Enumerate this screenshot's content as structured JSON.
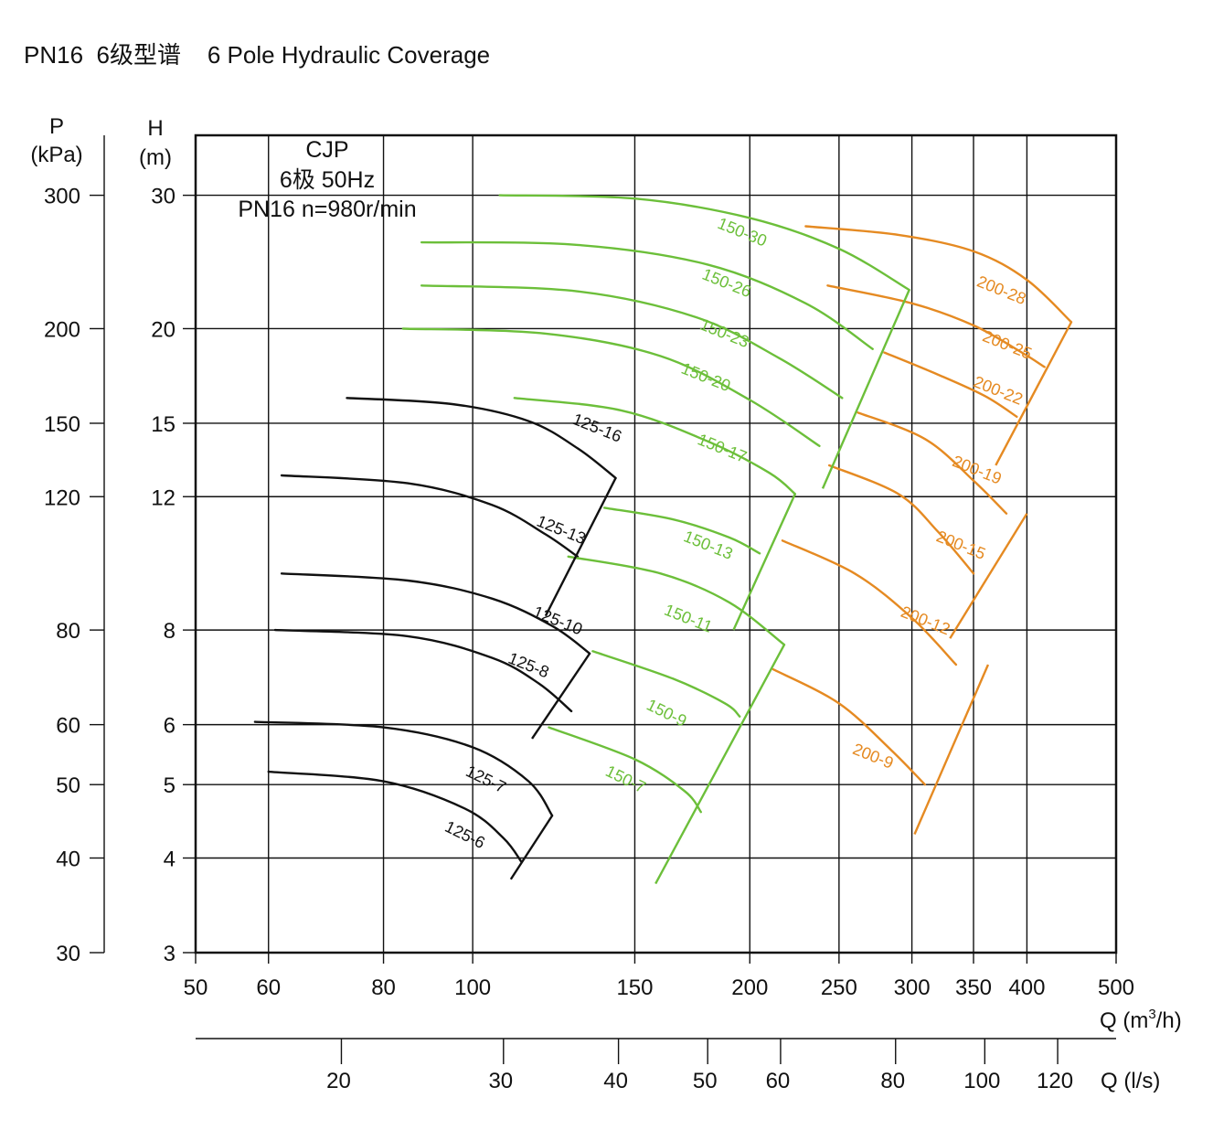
{
  "title": "PN16  6级型谱    6 Pole Hydraulic Coverage",
  "chart_data": {
    "type": "line",
    "title": "PN16  6级型谱    6 Pole Hydraulic Coverage",
    "info": [
      "CJP",
      "6极  50Hz",
      "PN16  n=980r/min"
    ],
    "x_scale": "log",
    "y_scale": "log",
    "xlim": [
      50,
      500
    ],
    "ylim": [
      3,
      36
    ],
    "x_ticks": [
      50,
      60,
      80,
      100,
      150,
      200,
      250,
      300,
      350,
      400,
      500
    ],
    "x_gridlines": [
      60,
      80,
      100,
      150,
      200,
      250,
      300,
      350,
      400
    ],
    "y_ticks": [
      3,
      4,
      5,
      6,
      8,
      12,
      15,
      20,
      30
    ],
    "y_tick_labels": [
      "3",
      "4",
      "5",
      "6",
      "8",
      "12",
      "15",
      "20",
      "30"
    ],
    "p_axis": {
      "label_line1": "P",
      "label_line2": "(kPa)",
      "ticks": [
        30,
        40,
        50,
        60,
        80,
        120,
        150,
        200,
        300
      ],
      "tick_labels": [
        "30",
        "40",
        "50",
        "60",
        "80",
        "120",
        "150",
        "200",
        "300"
      ]
    },
    "h_axis": {
      "label_line1": "H",
      "label_line2": "(m)"
    },
    "q_m3h_label": "Q (m",
    "q_m3h_sup": "3",
    "q_m3h_end": "/h)",
    "q_ls_axis": {
      "label": "Q (l/s)",
      "ticks": [
        20,
        30,
        40,
        50,
        60,
        80,
        100,
        120
      ],
      "tick_labels": [
        "20",
        "30",
        "40",
        "50",
        "60",
        "80",
        "100",
        "120"
      ]
    },
    "colors": {
      "grid": "#111111",
      "series_125": "#111111",
      "series_150": "#6cbf3a",
      "series_200": "#e58a22"
    },
    "series": [
      {
        "name": "125-16",
        "group": "125",
        "points": [
          [
            73,
            16.2
          ],
          [
            95,
            15.9
          ],
          [
            115,
            15.1
          ],
          [
            130,
            13.9
          ],
          [
            143,
            12.7
          ]
        ]
      },
      {
        "name": "125-13",
        "group": "125",
        "points": [
          [
            62,
            12.8
          ],
          [
            85,
            12.5
          ],
          [
            105,
            11.7
          ],
          [
            120,
            10.7
          ],
          [
            130,
            10.0
          ]
        ]
      },
      {
        "name": "125-10",
        "group": "125",
        "points": [
          [
            62,
            9.5
          ],
          [
            85,
            9.3
          ],
          [
            105,
            8.8
          ],
          [
            122,
            8.1
          ],
          [
            134,
            7.45
          ]
        ]
      },
      {
        "name": "125-8",
        "group": "125",
        "points": [
          [
            61,
            8.0
          ],
          [
            85,
            7.85
          ],
          [
            105,
            7.35
          ],
          [
            118,
            6.8
          ],
          [
            128,
            6.25
          ]
        ]
      },
      {
        "name": "125-7",
        "group": "125",
        "points": [
          [
            58,
            6.05
          ],
          [
            80,
            5.95
          ],
          [
            100,
            5.6
          ],
          [
            115,
            5.05
          ],
          [
            122,
            4.55
          ]
        ]
      },
      {
        "name": "125-6",
        "group": "125",
        "points": [
          [
            60,
            5.2
          ],
          [
            80,
            5.05
          ],
          [
            98,
            4.65
          ],
          [
            108,
            4.25
          ],
          [
            113,
            3.95
          ]
        ]
      },
      {
        "name": "150-30",
        "group": "150",
        "points": [
          [
            107,
            30
          ],
          [
            150,
            29.7
          ],
          [
            200,
            28.0
          ],
          [
            250,
            25.5
          ],
          [
            298,
            22.5
          ]
        ]
      },
      {
        "name": "150-26",
        "group": "150",
        "points": [
          [
            88,
            26.0
          ],
          [
            130,
            25.8
          ],
          [
            180,
            24.3
          ],
          [
            230,
            21.6
          ],
          [
            272,
            18.8
          ]
        ]
      },
      {
        "name": "150-23",
        "group": "150",
        "points": [
          [
            88,
            22.8
          ],
          [
            130,
            22.4
          ],
          [
            175,
            20.7
          ],
          [
            215,
            18.3
          ],
          [
            252,
            16.2
          ]
        ]
      },
      {
        "name": "150-20",
        "group": "150",
        "points": [
          [
            84,
            20.0
          ],
          [
            120,
            19.7
          ],
          [
            160,
            18.4
          ],
          [
            200,
            16.1
          ],
          [
            238,
            14.0
          ]
        ]
      },
      {
        "name": "150-17",
        "group": "150",
        "points": [
          [
            111,
            16.2
          ],
          [
            145,
            15.6
          ],
          [
            180,
            14.2
          ],
          [
            210,
            12.9
          ],
          [
            224,
            12.1
          ]
        ]
      },
      {
        "name": "150-13",
        "group": "150",
        "points": [
          [
            139,
            11.6
          ],
          [
            165,
            11.2
          ],
          [
            190,
            10.6
          ],
          [
            205,
            10.1
          ]
        ]
      },
      {
        "name": "150-11",
        "group": "150",
        "points": [
          [
            127,
            10.0
          ],
          [
            160,
            9.5
          ],
          [
            190,
            8.7
          ],
          [
            218,
            7.65
          ]
        ]
      },
      {
        "name": "150-9",
        "group": "150",
        "points": [
          [
            135,
            7.5
          ],
          [
            165,
            6.9
          ],
          [
            188,
            6.4
          ],
          [
            195,
            6.15
          ]
        ]
      },
      {
        "name": "150-7",
        "group": "150",
        "points": [
          [
            121,
            5.95
          ],
          [
            150,
            5.4
          ],
          [
            170,
            4.9
          ],
          [
            177,
            4.6
          ]
        ]
      },
      {
        "name": "200-28",
        "group": "200",
        "points": [
          [
            230,
            27.3
          ],
          [
            290,
            26.6
          ],
          [
            350,
            25.3
          ],
          [
            400,
            23.2
          ],
          [
            447,
            20.4
          ]
        ]
      },
      {
        "name": "200-25",
        "group": "200",
        "points": [
          [
            243,
            22.8
          ],
          [
            300,
            21.6
          ],
          [
            350,
            20.2
          ],
          [
            395,
            18.6
          ],
          [
            418,
            17.8
          ]
        ]
      },
      {
        "name": "200-22",
        "group": "200",
        "points": [
          [
            280,
            18.6
          ],
          [
            320,
            17.4
          ],
          [
            360,
            16.3
          ],
          [
            390,
            15.3
          ]
        ]
      },
      {
        "name": "200-19",
        "group": "200",
        "points": [
          [
            262,
            15.5
          ],
          [
            310,
            14.3
          ],
          [
            350,
            12.6
          ],
          [
            380,
            11.4
          ]
        ]
      },
      {
        "name": "200-15",
        "group": "200",
        "points": [
          [
            244,
            13.2
          ],
          [
            290,
            12.1
          ],
          [
            320,
            10.8
          ],
          [
            350,
            9.5
          ]
        ]
      },
      {
        "name": "200-12",
        "group": "200",
        "points": [
          [
            217,
            10.5
          ],
          [
            260,
            9.5
          ],
          [
            300,
            8.3
          ],
          [
            335,
            7.2
          ]
        ]
      },
      {
        "name": "200-9",
        "group": "200",
        "points": [
          [
            212,
            7.1
          ],
          [
            250,
            6.4
          ],
          [
            285,
            5.55
          ],
          [
            310,
            5.0
          ]
        ]
      }
    ],
    "envelopes": [
      {
        "group": "125",
        "points": [
          [
            120,
            8.35
          ],
          [
            143,
            12.7
          ]
        ]
      },
      {
        "group": "125",
        "points": [
          [
            116,
            5.75
          ],
          [
            134,
            7.45
          ]
        ]
      },
      {
        "group": "125",
        "points": [
          [
            110,
            3.75
          ],
          [
            122,
            4.55
          ]
        ]
      },
      {
        "group": "150",
        "points": [
          [
            192,
            8.0
          ],
          [
            224,
            12.1
          ]
        ]
      },
      {
        "group": "150",
        "points": [
          [
            158,
            3.7
          ],
          [
            218,
            7.65
          ]
        ]
      },
      {
        "group": "150",
        "points": [
          [
            240,
            12.3
          ],
          [
            298,
            22.5
          ]
        ]
      },
      {
        "group": "200",
        "points": [
          [
            370,
            13.2
          ],
          [
            447,
            20.4
          ]
        ]
      },
      {
        "group": "200",
        "points": [
          [
            330,
            7.8
          ],
          [
            400,
            11.4
          ]
        ]
      },
      {
        "group": "200",
        "points": [
          [
            302,
            4.3
          ],
          [
            363,
            7.2
          ]
        ]
      }
    ],
    "label_positions": {
      "125-16": [
        128,
        15.0,
        22
      ],
      "125-13": [
        117,
        11.0,
        22
      ],
      "125-10": [
        116,
        8.35,
        22
      ],
      "125-8": [
        109,
        7.25,
        22
      ],
      "125-7": [
        98,
        5.15,
        26
      ],
      "125-6": [
        93,
        4.35,
        26
      ],
      "150-30": [
        184,
        27.2,
        22
      ],
      "150-26": [
        177,
        23.3,
        22
      ],
      "150-23": [
        176,
        20.0,
        22
      ],
      "150-20": [
        168,
        17.5,
        22
      ],
      "150-17": [
        175,
        14.1,
        22
      ],
      "150-13": [
        169,
        10.5,
        22
      ],
      "150-11": [
        161,
        8.4,
        22
      ],
      "150-9": [
        154,
        6.3,
        26
      ],
      "150-7": [
        139,
        5.15,
        26
      ],
      "200-28": [
        352,
        22.8,
        22
      ],
      "200-25": [
        357,
        19.3,
        22
      ],
      "200-22": [
        349,
        16.8,
        22
      ],
      "200-19": [
        331,
        13.2,
        22
      ],
      "200-15": [
        318,
        10.5,
        22
      ],
      "200-12": [
        291,
        8.35,
        22
      ],
      "200-9": [
        258,
        5.5,
        22
      ]
    }
  }
}
